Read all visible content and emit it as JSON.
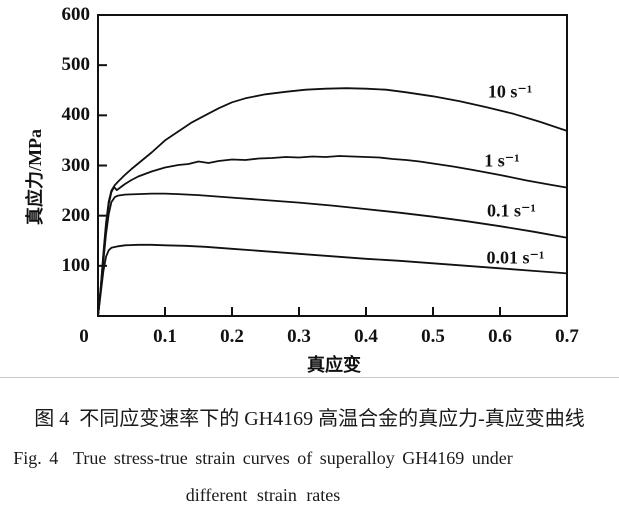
{
  "figure": {
    "caption_line1": "图 4  不同应变速率下的 GH4169 高温合金的真应力-真应变曲线",
    "caption_line2": "Fig. 4  True stress-true strain curves of superalloy GH4169 under",
    "caption_line3": "different strain rates"
  },
  "chart_data": {
    "type": "line",
    "title": "",
    "xlabel": "真应变",
    "ylabel": "真应力/MPa",
    "xlim": [
      0,
      0.7
    ],
    "ylim": [
      0,
      600
    ],
    "grid": false,
    "legend_position": "inline-labels",
    "axis_color": "#111111",
    "curve_color": "#111111",
    "x_ticks": {
      "values": [
        0,
        0.1,
        0.2,
        0.3,
        0.4,
        0.5,
        0.6,
        0.7
      ],
      "labels": [
        "0",
        "0.1",
        "0.2",
        "0.3",
        "0.4",
        "0.5",
        "0.6",
        "0.7"
      ]
    },
    "y_ticks": {
      "values": [
        100,
        200,
        300,
        400,
        500,
        600
      ],
      "labels": [
        "100",
        "200",
        "300",
        "400",
        "500",
        "600"
      ]
    },
    "series": [
      {
        "name": "10 s⁻¹",
        "label_at": [
          0.615,
          447
        ],
        "points": [
          [
            0,
            0
          ],
          [
            0.004,
            55
          ],
          [
            0.008,
            125
          ],
          [
            0.012,
            185
          ],
          [
            0.016,
            228
          ],
          [
            0.02,
            250
          ],
          [
            0.025,
            261
          ],
          [
            0.03,
            268
          ],
          [
            0.04,
            281
          ],
          [
            0.05,
            293
          ],
          [
            0.06,
            304
          ],
          [
            0.08,
            326
          ],
          [
            0.1,
            350
          ],
          [
            0.12,
            368
          ],
          [
            0.14,
            386
          ],
          [
            0.16,
            400
          ],
          [
            0.18,
            414
          ],
          [
            0.2,
            426
          ],
          [
            0.22,
            434
          ],
          [
            0.25,
            442
          ],
          [
            0.28,
            447
          ],
          [
            0.31,
            451
          ],
          [
            0.34,
            453
          ],
          [
            0.37,
            454
          ],
          [
            0.4,
            453
          ],
          [
            0.43,
            451
          ],
          [
            0.46,
            446
          ],
          [
            0.5,
            438
          ],
          [
            0.54,
            428
          ],
          [
            0.58,
            416
          ],
          [
            0.62,
            403
          ],
          [
            0.66,
            387
          ],
          [
            0.7,
            369
          ]
        ]
      },
      {
        "name": "1 s⁻¹",
        "label_at": [
          0.603,
          310
        ],
        "points": [
          [
            0,
            0
          ],
          [
            0.004,
            55
          ],
          [
            0.008,
            120
          ],
          [
            0.012,
            180
          ],
          [
            0.016,
            222
          ],
          [
            0.02,
            247
          ],
          [
            0.024,
            257
          ],
          [
            0.028,
            251
          ],
          [
            0.034,
            257
          ],
          [
            0.04,
            263
          ],
          [
            0.05,
            271
          ],
          [
            0.06,
            278
          ],
          [
            0.08,
            288
          ],
          [
            0.1,
            296
          ],
          [
            0.12,
            301
          ],
          [
            0.135,
            303
          ],
          [
            0.15,
            308
          ],
          [
            0.165,
            305
          ],
          [
            0.18,
            309
          ],
          [
            0.2,
            312
          ],
          [
            0.22,
            311
          ],
          [
            0.24,
            314
          ],
          [
            0.26,
            315
          ],
          [
            0.28,
            317
          ],
          [
            0.3,
            316
          ],
          [
            0.32,
            318
          ],
          [
            0.34,
            317
          ],
          [
            0.36,
            319
          ],
          [
            0.38,
            318
          ],
          [
            0.4,
            317
          ],
          [
            0.42,
            316
          ],
          [
            0.44,
            313
          ],
          [
            0.46,
            311
          ],
          [
            0.48,
            308
          ],
          [
            0.5,
            304
          ],
          [
            0.53,
            298
          ],
          [
            0.56,
            291
          ],
          [
            0.6,
            281
          ],
          [
            0.64,
            270
          ],
          [
            0.67,
            263
          ],
          [
            0.7,
            256
          ]
        ]
      },
      {
        "name": "0.1 s⁻¹",
        "label_at": [
          0.617,
          210
        ],
        "points": [
          [
            0,
            0
          ],
          [
            0.004,
            50
          ],
          [
            0.008,
            110
          ],
          [
            0.012,
            163
          ],
          [
            0.016,
            203
          ],
          [
            0.02,
            227
          ],
          [
            0.025,
            237
          ],
          [
            0.03,
            240
          ],
          [
            0.04,
            242
          ],
          [
            0.06,
            243
          ],
          [
            0.08,
            244
          ],
          [
            0.1,
            244
          ],
          [
            0.12,
            243
          ],
          [
            0.15,
            241
          ],
          [
            0.18,
            238
          ],
          [
            0.21,
            235
          ],
          [
            0.25,
            231
          ],
          [
            0.3,
            226
          ],
          [
            0.35,
            220
          ],
          [
            0.4,
            213
          ],
          [
            0.45,
            206
          ],
          [
            0.5,
            198
          ],
          [
            0.55,
            189
          ],
          [
            0.6,
            179
          ],
          [
            0.65,
            168
          ],
          [
            0.7,
            156
          ]
        ]
      },
      {
        "name": "0.01 s⁻¹",
        "label_at": [
          0.623,
          116
        ],
        "points": [
          [
            0,
            0
          ],
          [
            0.004,
            45
          ],
          [
            0.008,
            90
          ],
          [
            0.012,
            118
          ],
          [
            0.016,
            131
          ],
          [
            0.02,
            136
          ],
          [
            0.03,
            139
          ],
          [
            0.04,
            141
          ],
          [
            0.06,
            142
          ],
          [
            0.08,
            142
          ],
          [
            0.1,
            141
          ],
          [
            0.13,
            140
          ],
          [
            0.16,
            138
          ],
          [
            0.2,
            134
          ],
          [
            0.25,
            129
          ],
          [
            0.3,
            124
          ],
          [
            0.35,
            119
          ],
          [
            0.4,
            114
          ],
          [
            0.45,
            110
          ],
          [
            0.5,
            105
          ],
          [
            0.55,
            100
          ],
          [
            0.6,
            95
          ],
          [
            0.65,
            90
          ],
          [
            0.7,
            85
          ]
        ]
      }
    ]
  }
}
